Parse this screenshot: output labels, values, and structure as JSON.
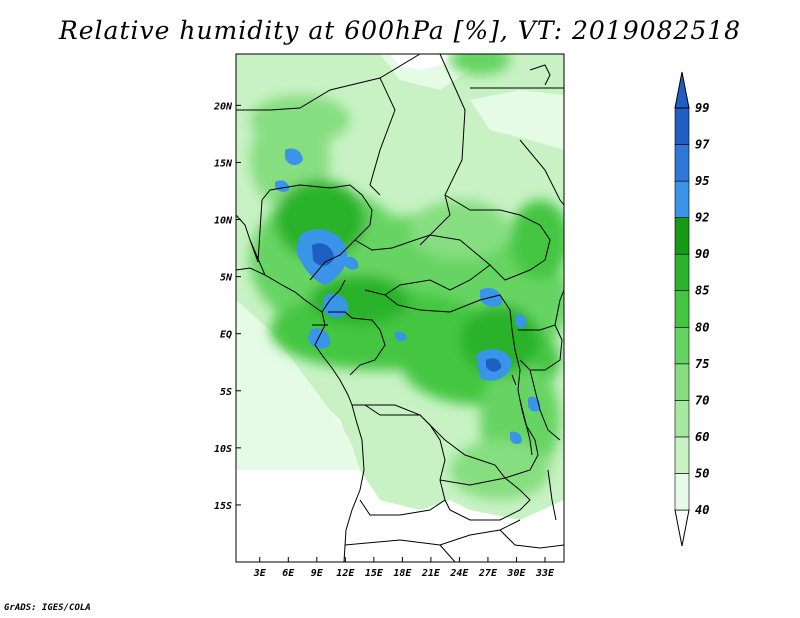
{
  "title": "Relative humidity at 600hPa [%], VT: 2019082518",
  "credit": "GrADS: IGES/COLA",
  "map": {
    "lat_ticks": [
      "20N",
      "15N",
      "10N",
      "5N",
      "EQ",
      "5S",
      "10S",
      "15S"
    ],
    "lat_values": [
      20,
      15,
      10,
      5,
      0,
      -5,
      -10,
      -15
    ],
    "lon_ticks": [
      "3E",
      "6E",
      "9E",
      "12E",
      "15E",
      "18E",
      "21E",
      "24E",
      "27E",
      "30E",
      "33E"
    ],
    "lon_values": [
      3,
      6,
      9,
      12,
      15,
      18,
      21,
      24,
      27,
      30,
      33
    ],
    "lon_range": [
      0.5,
      35
    ],
    "lat_range": [
      -20,
      24.5
    ]
  },
  "colorbar": {
    "levels": [
      "40",
      "50",
      "60",
      "70",
      "75",
      "80",
      "85",
      "90",
      "92",
      "95",
      "97",
      "99"
    ],
    "colors": [
      "#ffffff",
      "#e6fbe5",
      "#c8f2c4",
      "#a6e8a0",
      "#86de80",
      "#66d462",
      "#45c642",
      "#2bb32b",
      "#149a14",
      "#3a95e8",
      "#2f78d8",
      "#1f5fc4"
    ]
  }
}
